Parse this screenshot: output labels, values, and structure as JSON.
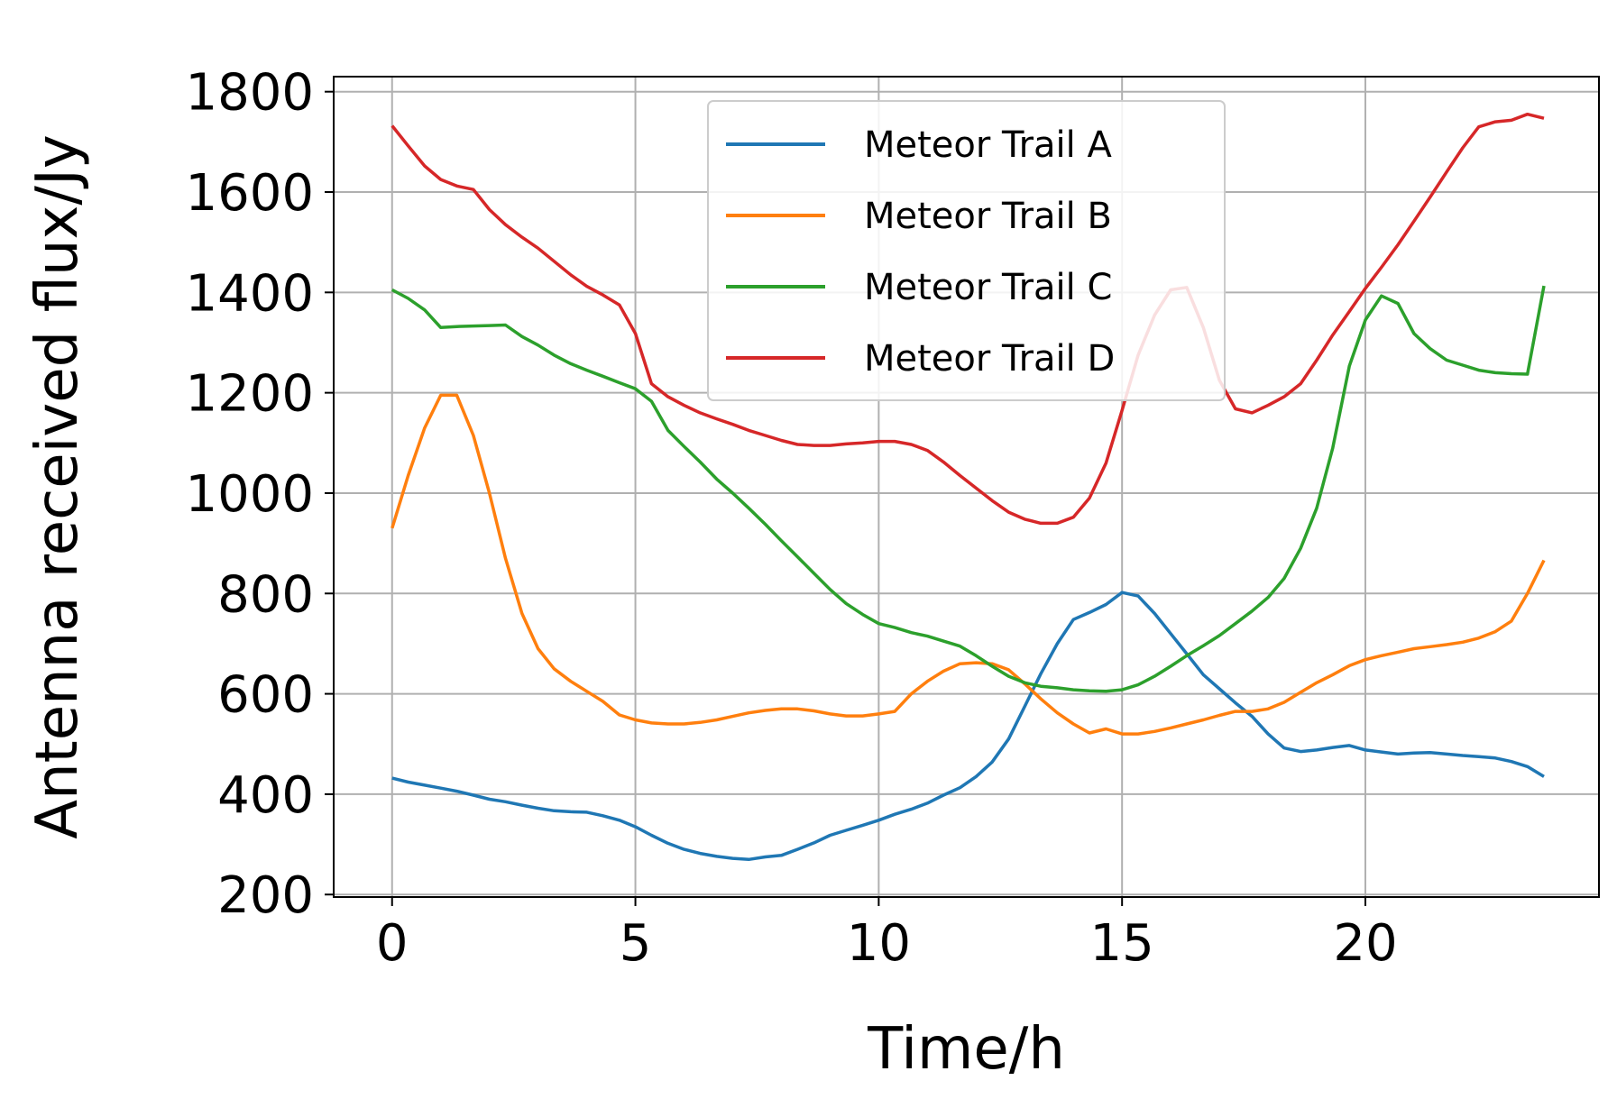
{
  "chart_data": {
    "type": "line",
    "xlabel": "Time/h",
    "ylabel": "Antenna received flux/Jy",
    "xlim": [
      -1.2,
      24.8
    ],
    "ylim": [
      195,
      1830
    ],
    "xticks": [
      0,
      5,
      10,
      15,
      20
    ],
    "yticks": [
      200,
      400,
      600,
      800,
      1000,
      1200,
      1400,
      1600,
      1800
    ],
    "grid": true,
    "legend_position": "upper-center",
    "x": [
      0,
      0.33,
      0.67,
      1.0,
      1.33,
      1.67,
      2.0,
      2.33,
      2.67,
      3.0,
      3.33,
      3.67,
      4.0,
      4.33,
      4.67,
      5.0,
      5.33,
      5.67,
      6.0,
      6.33,
      6.67,
      7.0,
      7.33,
      7.67,
      8.0,
      8.33,
      8.67,
      9.0,
      9.33,
      9.67,
      10.0,
      10.33,
      10.67,
      11.0,
      11.33,
      11.67,
      12.0,
      12.33,
      12.67,
      13.0,
      13.33,
      13.67,
      14.0,
      14.33,
      14.67,
      15.0,
      15.33,
      15.67,
      16.0,
      16.33,
      16.67,
      17.0,
      17.33,
      17.67,
      18.0,
      18.33,
      18.67,
      19.0,
      19.33,
      19.67,
      20.0,
      20.33,
      20.67,
      21.0,
      21.33,
      21.67,
      22.0,
      22.33,
      22.67,
      23.0,
      23.33,
      23.67
    ],
    "series": [
      {
        "name": "Meteor Trail A",
        "color": "#1f77b4",
        "values": [
          432,
          424,
          418,
          412,
          406,
          398,
          390,
          385,
          378,
          372,
          367,
          365,
          364,
          357,
          348,
          335,
          318,
          302,
          290,
          282,
          276,
          272,
          270,
          275,
          278,
          290,
          303,
          318,
          328,
          338,
          348,
          360,
          370,
          382,
          398,
          413,
          435,
          464,
          510,
          575,
          640,
          700,
          748,
          762,
          778,
          802,
          795,
          760,
          720,
          680,
          638,
          610,
          582,
          555,
          520,
          492,
          485,
          488,
          493,
          497,
          488,
          484,
          480,
          482,
          483,
          480,
          477,
          475,
          472,
          465,
          455,
          435
        ]
      },
      {
        "name": "Meteor Trail B",
        "color": "#ff7f0e",
        "values": [
          930,
          1035,
          1130,
          1195,
          1195,
          1115,
          1000,
          870,
          760,
          690,
          650,
          625,
          605,
          585,
          558,
          548,
          542,
          540,
          540,
          543,
          548,
          555,
          562,
          567,
          570,
          570,
          566,
          560,
          556,
          556,
          560,
          565,
          600,
          625,
          645,
          660,
          662,
          660,
          648,
          620,
          590,
          562,
          540,
          522,
          530,
          520,
          520,
          525,
          532,
          540,
          548,
          557,
          565,
          565,
          570,
          583,
          603,
          622,
          638,
          656,
          668,
          676,
          683,
          690,
          694,
          698,
          703,
          711,
          724,
          745,
          800,
          866
        ]
      },
      {
        "name": "Meteor Trail C",
        "color": "#2ca02c",
        "values": [
          1405,
          1388,
          1365,
          1330,
          1332,
          1333,
          1334,
          1335,
          1312,
          1295,
          1275,
          1258,
          1245,
          1233,
          1220,
          1208,
          1183,
          1125,
          1093,
          1062,
          1028,
          1000,
          970,
          938,
          905,
          873,
          840,
          808,
          780,
          758,
          740,
          732,
          722,
          715,
          705,
          695,
          676,
          655,
          635,
          622,
          615,
          612,
          608,
          606,
          605,
          608,
          618,
          635,
          655,
          676,
          696,
          716,
          740,
          765,
          792,
          830,
          890,
          970,
          1090,
          1253,
          1345,
          1393,
          1378,
          1318,
          1288,
          1265,
          1255,
          1245,
          1240,
          1238,
          1237,
          1413
        ]
      },
      {
        "name": "Meteor Trail D",
        "color": "#d62728",
        "values": [
          1732,
          1692,
          1652,
          1625,
          1612,
          1605,
          1565,
          1535,
          1510,
          1488,
          1462,
          1435,
          1412,
          1395,
          1375,
          1318,
          1218,
          1192,
          1175,
          1160,
          1148,
          1137,
          1125,
          1115,
          1105,
          1097,
          1095,
          1095,
          1098,
          1100,
          1103,
          1103,
          1097,
          1085,
          1062,
          1035,
          1010,
          985,
          962,
          948,
          940,
          940,
          952,
          990,
          1060,
          1165,
          1275,
          1355,
          1405,
          1410,
          1330,
          1225,
          1168,
          1160,
          1175,
          1192,
          1218,
          1265,
          1315,
          1362,
          1408,
          1450,
          1495,
          1542,
          1590,
          1640,
          1688,
          1730,
          1740,
          1743,
          1755,
          1747
        ]
      }
    ]
  }
}
